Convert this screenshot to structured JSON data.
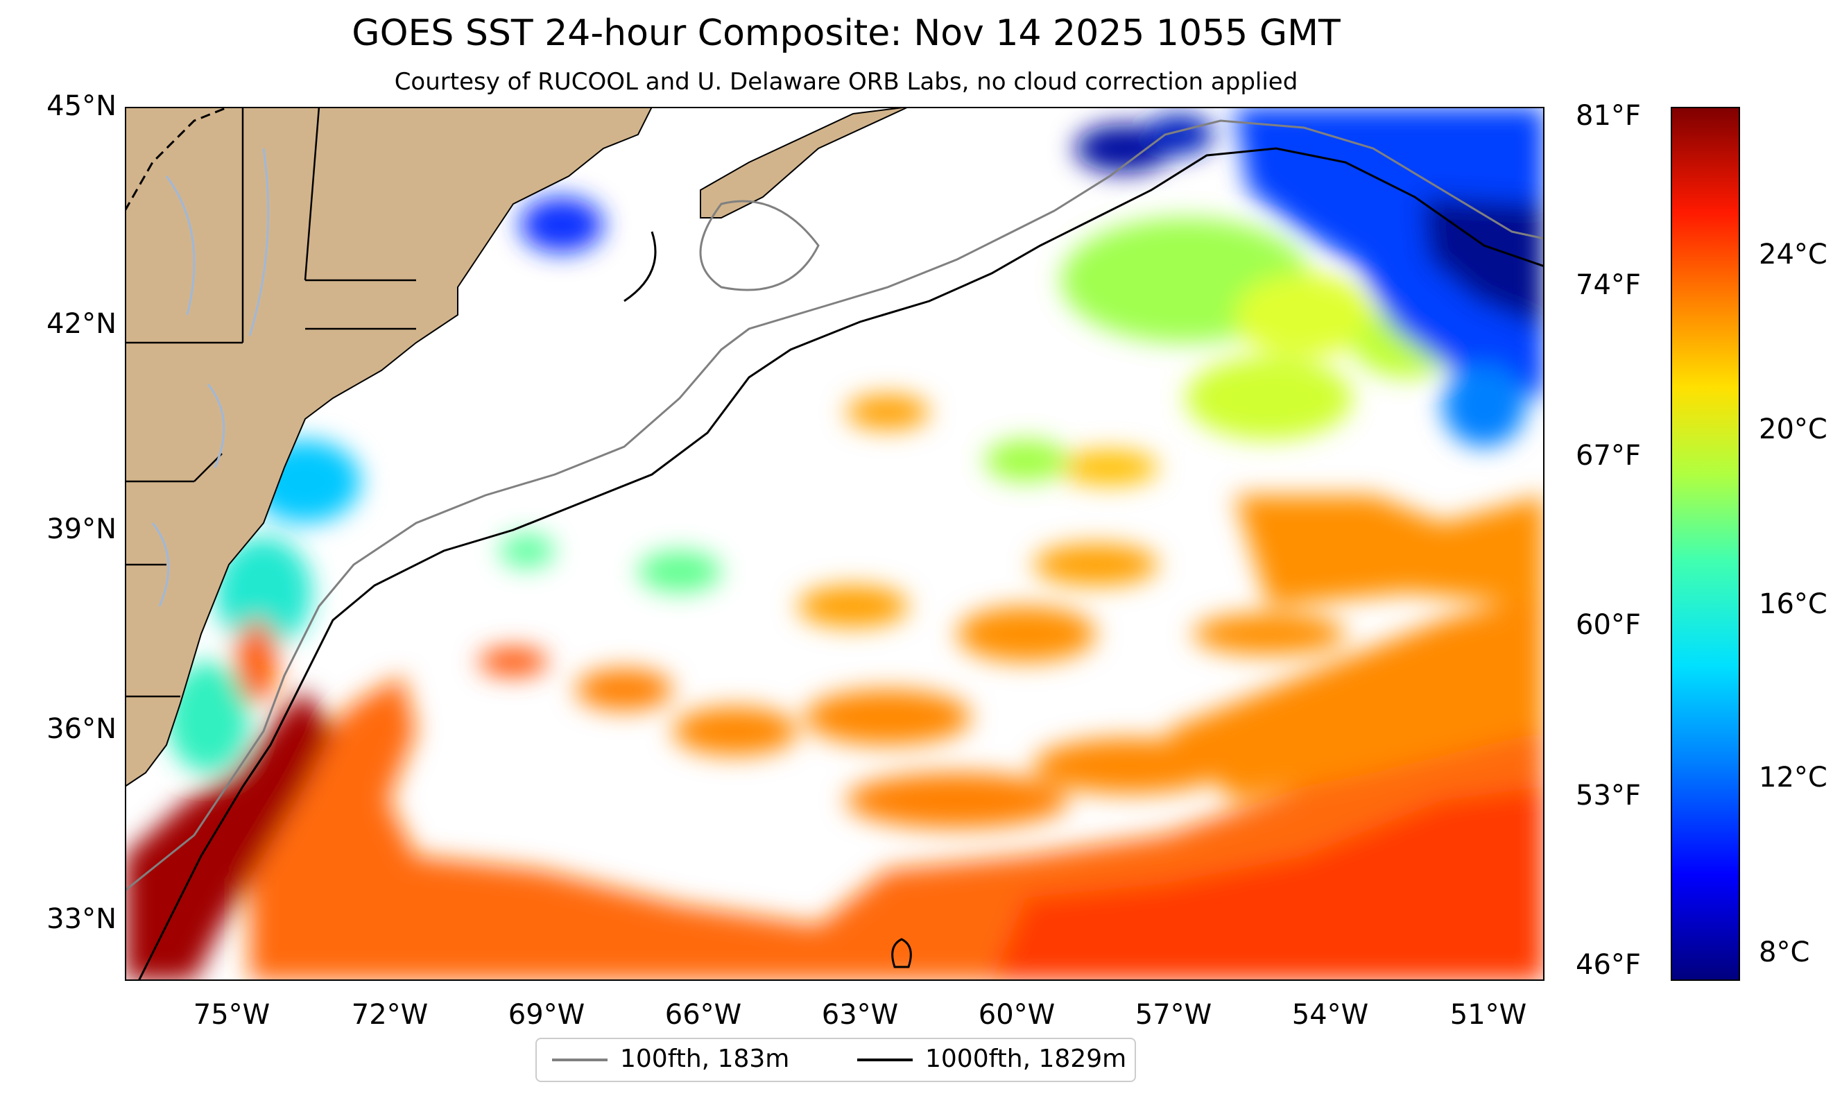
{
  "title": "GOES SST 24-hour Composite: Nov 14 2025 1055 GMT",
  "subtitle": "Courtesy of RUCOOL and U. Delaware ORB Labs, no cloud correction applied",
  "lat_labels": [
    "45°N",
    "42°N",
    "39°N",
    "36°N",
    "33°N"
  ],
  "lon_labels": [
    "75°W",
    "72°W",
    "69°W",
    "66°W",
    "63°W",
    "60°W",
    "57°W",
    "54°W",
    "51°W"
  ],
  "colorbar": {
    "fahrenheit_ticks": [
      "81°F",
      "74°F",
      "67°F",
      "60°F",
      "53°F",
      "46°F"
    ],
    "celsius_ticks": [
      "24°C",
      "20°C",
      "16°C",
      "12°C",
      "8°C"
    ],
    "colors": {
      "cold": "#00007f",
      "mid": "#40ffb0",
      "warm": "#ff8000",
      "hot": "#800000"
    }
  },
  "legend": {
    "items": [
      {
        "label": "100fth, 183m",
        "color": "#808080"
      },
      {
        "label": "1000fth, 1829m",
        "color": "#000000"
      }
    ]
  },
  "colors": {
    "land": "#d2b48c",
    "water_gap": "#ffffff",
    "river": "#a0b8d8"
  }
}
